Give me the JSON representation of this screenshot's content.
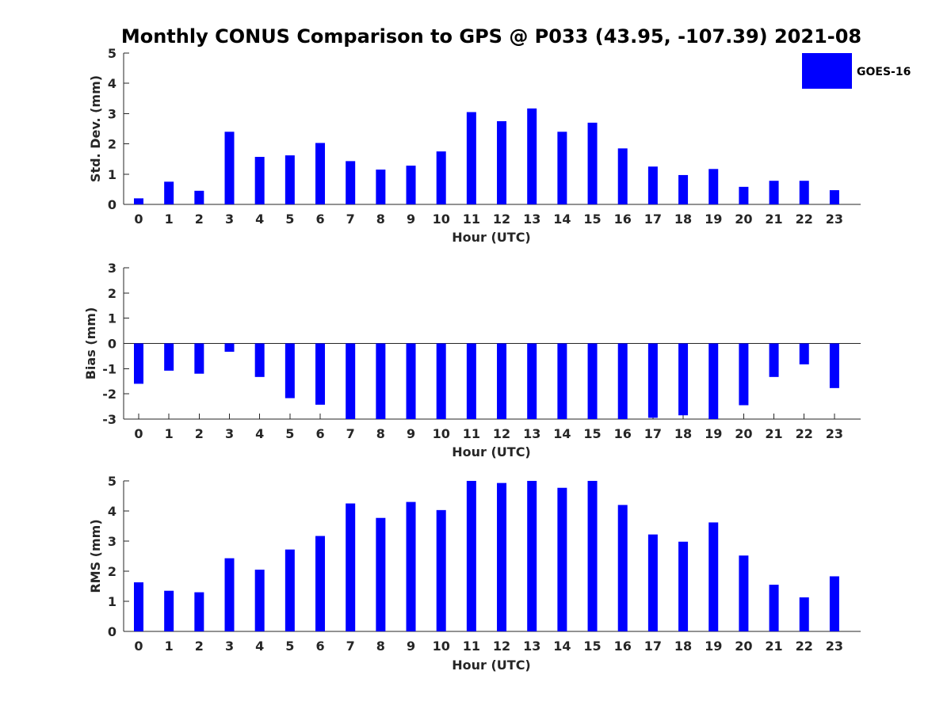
{
  "figure_title": "Monthly CONUS Comparison to GPS @ P033 (43.95, -107.39) 2021-08",
  "legend": {
    "label": "GOES-16",
    "color": "#0000ff"
  },
  "chart_data": [
    {
      "type": "bar",
      "name": "std-dev",
      "categories": [
        "0",
        "1",
        "2",
        "3",
        "4",
        "5",
        "6",
        "7",
        "8",
        "9",
        "10",
        "11",
        "12",
        "13",
        "14",
        "15",
        "16",
        "17",
        "18",
        "19",
        "20",
        "21",
        "22",
        "23"
      ],
      "values": [
        0.2,
        0.75,
        0.45,
        2.4,
        1.57,
        1.62,
        2.03,
        1.43,
        1.15,
        1.28,
        1.75,
        3.05,
        2.75,
        3.17,
        2.4,
        2.7,
        1.85,
        1.25,
        0.97,
        1.17,
        0.58,
        0.78,
        0.78,
        0.47
      ],
      "xlabel": "Hour (UTC)",
      "ylabel": "Std. Dev. (mm)",
      "ylim": [
        0,
        5
      ],
      "yticks": [
        "0",
        "1",
        "2",
        "3",
        "4",
        "5"
      ],
      "color": "#0000ff"
    },
    {
      "type": "bar",
      "name": "bias",
      "categories": [
        "0",
        "1",
        "2",
        "3",
        "4",
        "5",
        "6",
        "7",
        "8",
        "9",
        "10",
        "11",
        "12",
        "13",
        "14",
        "15",
        "16",
        "17",
        "18",
        "19",
        "20",
        "21",
        "22",
        "23"
      ],
      "values": [
        -1.6,
        -1.08,
        -1.2,
        -0.33,
        -1.33,
        -2.17,
        -2.43,
        -3.0,
        -3.0,
        -3.0,
        -3.0,
        -3.0,
        -3.0,
        -3.0,
        -3.0,
        -3.0,
        -3.0,
        -2.95,
        -2.85,
        -3.0,
        -2.45,
        -1.33,
        -0.83,
        -1.77
      ],
      "xlabel": "Hour (UTC)",
      "ylabel": "Bias (mm)",
      "ylim": [
        -3,
        3
      ],
      "yticks": [
        "-3",
        "-2",
        "-1",
        "0",
        "1",
        "2",
        "3"
      ],
      "color": "#0000ff"
    },
    {
      "type": "bar",
      "name": "rms",
      "categories": [
        "0",
        "1",
        "2",
        "3",
        "4",
        "5",
        "6",
        "7",
        "8",
        "9",
        "10",
        "11",
        "12",
        "13",
        "14",
        "15",
        "16",
        "17",
        "18",
        "19",
        "20",
        "21",
        "22",
        "23"
      ],
      "values": [
        1.63,
        1.35,
        1.3,
        2.43,
        2.05,
        2.72,
        3.17,
        4.25,
        3.77,
        4.3,
        4.03,
        5.0,
        4.93,
        5.0,
        4.77,
        5.0,
        4.2,
        3.22,
        2.98,
        3.62,
        2.52,
        1.55,
        1.13,
        1.83
      ],
      "xlabel": "Hour (UTC)",
      "ylabel": "RMS (mm)",
      "ylim": [
        0,
        5
      ],
      "yticks": [
        "0",
        "1",
        "2",
        "3",
        "4",
        "5"
      ],
      "color": "#0000ff"
    }
  ]
}
